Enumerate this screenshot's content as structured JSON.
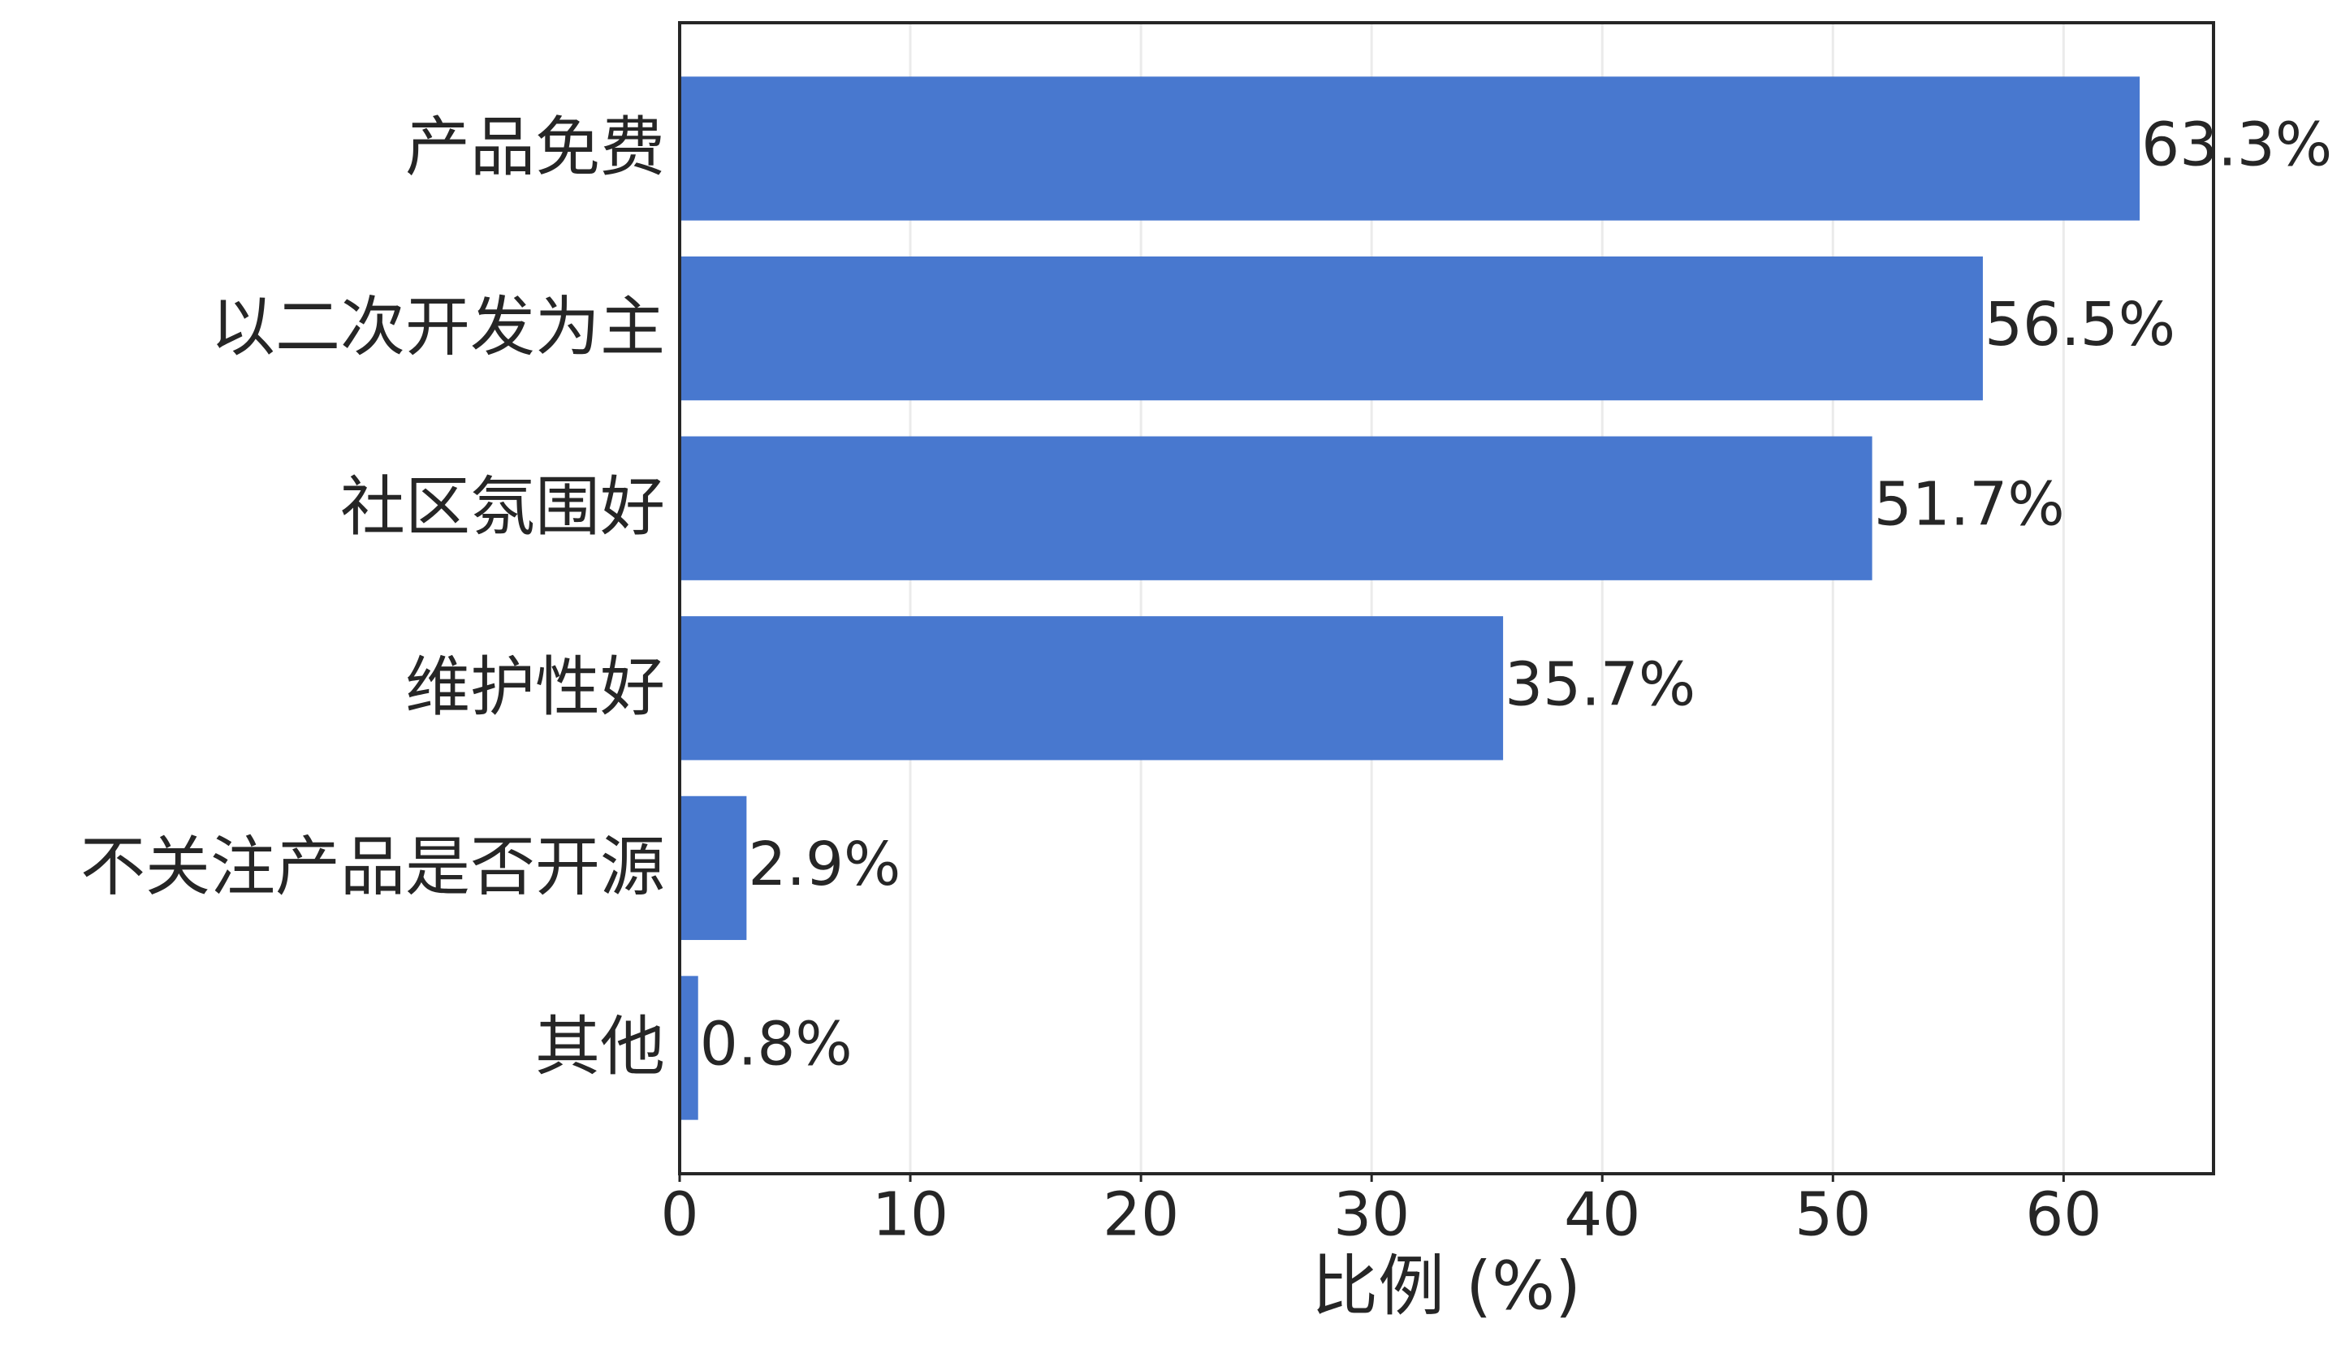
{
  "chart_data": {
    "type": "barh",
    "xlabel": "比例 (%)",
    "categories": [
      "产品免费",
      "以二次开发为主",
      "社区氛围好",
      "维护性好",
      "不关注产品是否开源",
      "其他"
    ],
    "values": [
      63.3,
      56.5,
      51.7,
      35.7,
      2.9,
      0.8
    ],
    "value_labels": [
      "63.3%",
      "56.5%",
      "51.7%",
      "35.7%",
      "2.9%",
      "0.8%"
    ],
    "color": "#4878cf",
    "xlim": [
      0,
      66.5
    ],
    "xticks": [
      0,
      10,
      20,
      30,
      40,
      50,
      60
    ],
    "grid": true
  }
}
